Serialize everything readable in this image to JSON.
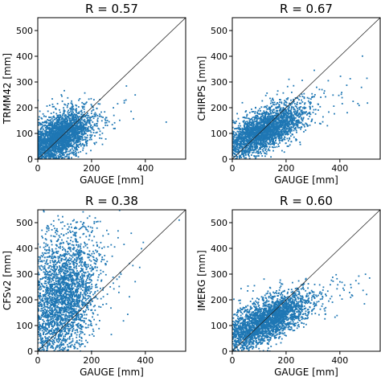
{
  "chart_data": [
    {
      "type": "scatter",
      "title": "R = 0.57",
      "xlabel": "GAUGE [mm]",
      "ylabel": "TRMM42 [mm]",
      "xlim": [
        0,
        550
      ],
      "ylim": [
        0,
        550
      ],
      "xticks": [
        0,
        200,
        400
      ],
      "yticks": [
        0,
        100,
        200,
        300,
        400,
        500
      ],
      "marker_color": "#1f77b4",
      "reference_line": {
        "x": [
          0,
          550
        ],
        "y": [
          0,
          550
        ]
      },
      "cloud": {
        "x_mean": 85,
        "x_sd": 55,
        "y_intercept": 55,
        "y_slope": 0.38,
        "y_sd": 42
      }
    },
    {
      "type": "scatter",
      "title": "R = 0.67",
      "xlabel": "GAUGE [mm]",
      "ylabel": "CHIRPS [mm]",
      "xlim": [
        0,
        550
      ],
      "ylim": [
        0,
        550
      ],
      "xticks": [
        0,
        200,
        400
      ],
      "yticks": [
        0,
        100,
        200,
        300,
        400,
        500
      ],
      "marker_color": "#1f77b4",
      "reference_line": {
        "x": [
          0,
          550
        ],
        "y": [
          0,
          550
        ]
      },
      "cloud": {
        "x_mean": 120,
        "x_sd": 70,
        "y_intercept": 55,
        "y_slope": 0.45,
        "y_sd": 38
      }
    },
    {
      "type": "scatter",
      "title": "R = 0.38",
      "xlabel": "GAUGE [mm]",
      "ylabel": "CFSv2 [mm]",
      "xlim": [
        0,
        550
      ],
      "ylim": [
        0,
        550
      ],
      "xticks": [
        0,
        200,
        400
      ],
      "yticks": [
        0,
        100,
        200,
        300,
        400,
        500
      ],
      "marker_color": "#1f77b4",
      "reference_line": {
        "x": [
          0,
          550
        ],
        "y": [
          0,
          550
        ]
      },
      "cloud": {
        "x_mean": 95,
        "x_sd": 60,
        "y_intercept": 160,
        "y_slope": 0.55,
        "y_sd": 115
      }
    },
    {
      "type": "scatter",
      "title": "R = 0.60",
      "xlabel": "GAUGE [mm]",
      "ylabel": "IMERG [mm]",
      "xlim": [
        0,
        550
      ],
      "ylim": [
        0,
        550
      ],
      "xticks": [
        0,
        200,
        400
      ],
      "yticks": [
        0,
        100,
        200,
        300,
        400,
        500
      ],
      "marker_color": "#1f77b4",
      "reference_line": {
        "x": [
          0,
          550
        ],
        "y": [
          0,
          550
        ]
      },
      "cloud": {
        "x_mean": 130,
        "x_sd": 75,
        "y_intercept": 65,
        "y_slope": 0.42,
        "y_sd": 40
      }
    }
  ]
}
